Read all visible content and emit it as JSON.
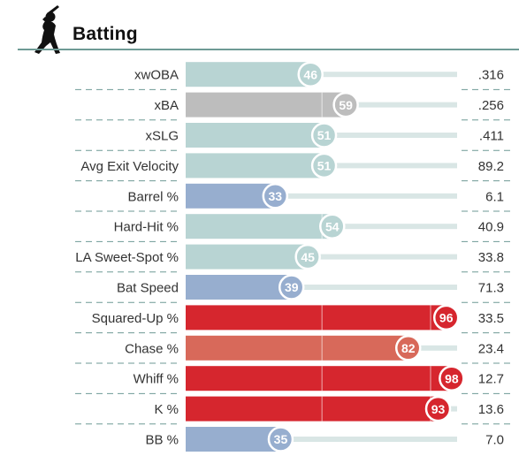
{
  "header": {
    "title": "Batting",
    "icon": "batter-silhouette-icon"
  },
  "colors": {
    "blue": "#97aecf",
    "teal": "#b8d4d3",
    "grey": "#bdbdbd",
    "salmon": "#d8695a",
    "red": "#d6262e",
    "track": "#d9e6e5",
    "divider": "#6e9a95",
    "rule": "#6e9a95"
  },
  "chart_data": {
    "type": "bar",
    "title": "Batting",
    "xlim": [
      0,
      100
    ],
    "categories": [
      "xwOBA",
      "xBA",
      "xSLG",
      "Avg Exit Velocity",
      "Barrel %",
      "Hard-Hit %",
      "LA Sweet-Spot %",
      "Bat Speed",
      "Squared-Up %",
      "Chase %",
      "Whiff %",
      "K %",
      "BB %"
    ],
    "percentiles": [
      46,
      59,
      51,
      51,
      33,
      54,
      45,
      39,
      96,
      82,
      98,
      93,
      35
    ],
    "values": [
      ".316",
      ".256",
      ".411",
      "89.2",
      "6.1",
      "40.9",
      "33.8",
      "71.3",
      "33.5",
      "23.4",
      "12.7",
      "13.6",
      "7.0"
    ],
    "bar_colors": [
      "teal",
      "grey",
      "teal",
      "teal",
      "blue",
      "teal",
      "teal",
      "blue",
      "red",
      "salmon",
      "red",
      "red",
      "blue"
    ]
  }
}
